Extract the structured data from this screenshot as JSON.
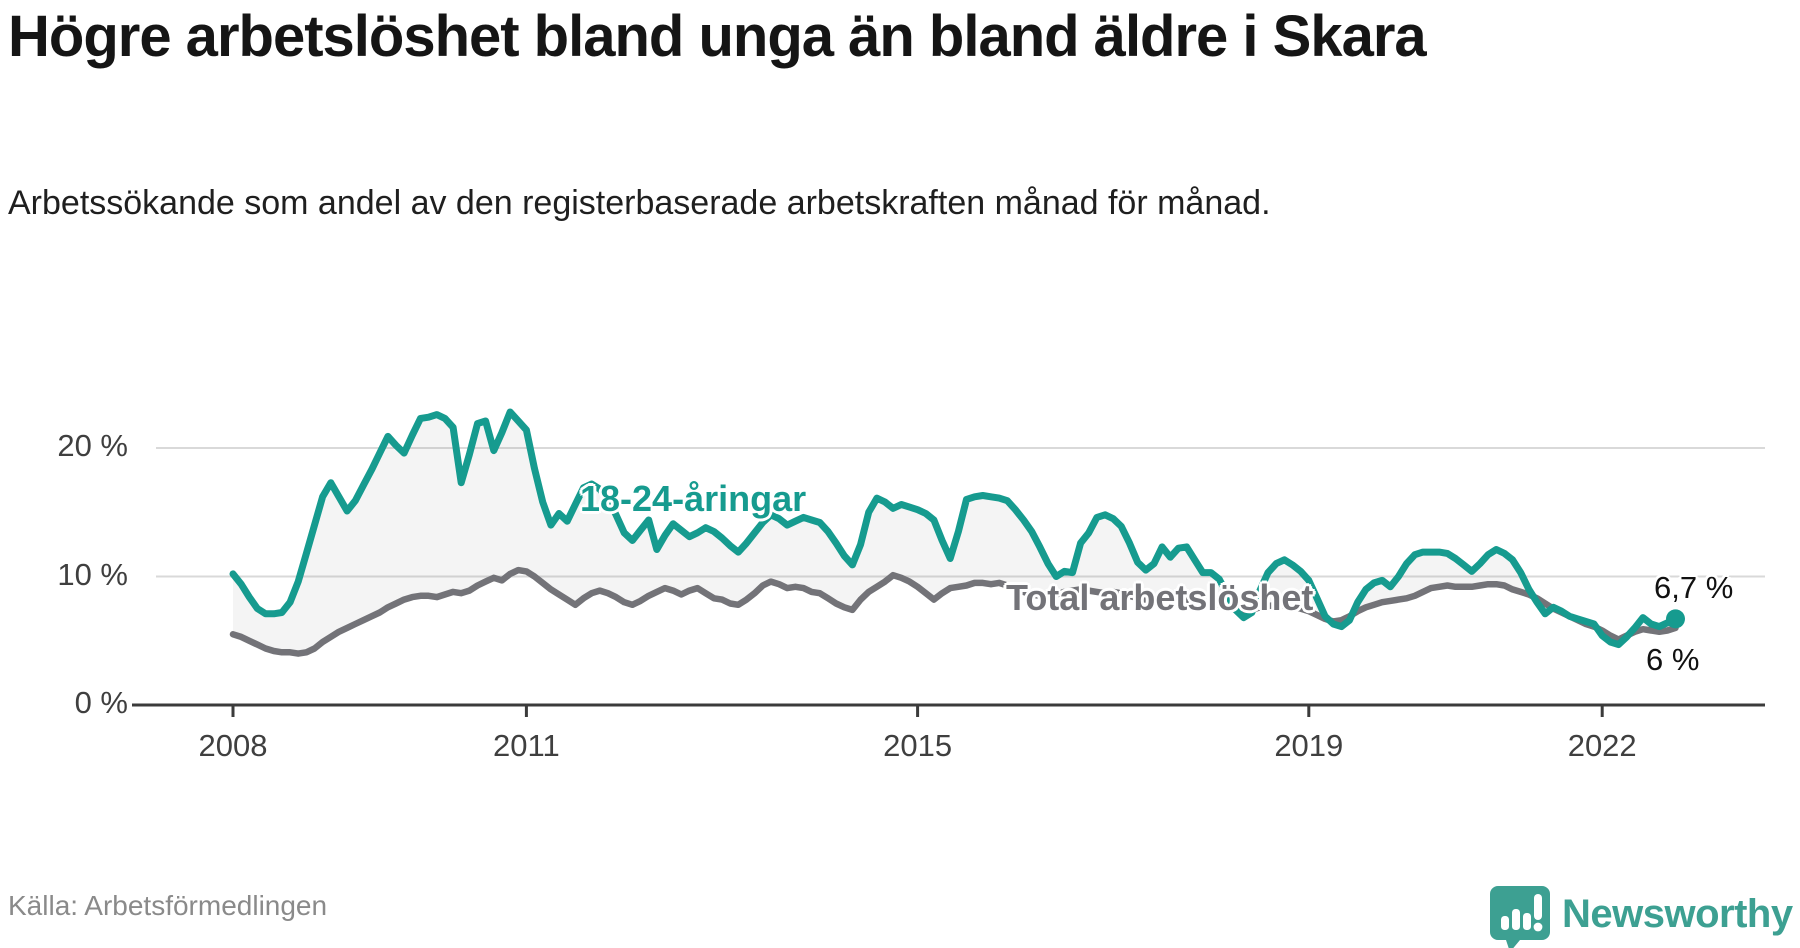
{
  "title": "Högre arbetslöshet bland unga än bland äldre i Skara",
  "subtitle": "Arbetssökande som andel av den registerbaserade arbetskraften månad för månad.",
  "source": "Källa: Arbetsförmedlingen",
  "brand": {
    "name": "Newsworthy",
    "icon": "newsworthy-logo",
    "color": "#3da092"
  },
  "chart_data": {
    "type": "line",
    "title": "Högre arbetslöshet bland unga än bland äldre i Skara",
    "xlabel": "",
    "ylabel": "Arbetssökande som andel av den registerbaserade arbetskraften",
    "x_unit": "month",
    "x_start": "2008-01",
    "x_end": "2022-10",
    "ylim": [
      0,
      24
    ],
    "grid": "horizontal",
    "legend_position": "inline-labels",
    "fill_between_series": "#f1f1f1",
    "axis_color": "#3b3b3b",
    "grid_color": "#d9d9d9",
    "x_ticks": [
      {
        "label": "2008",
        "month": 0
      },
      {
        "label": "2011",
        "month": 36
      },
      {
        "label": "2015",
        "month": 84
      },
      {
        "label": "2019",
        "month": 132
      },
      {
        "label": "2022",
        "month": 168
      }
    ],
    "y_ticks": [
      {
        "label": "0 %",
        "value": 0
      },
      {
        "label": "10 %",
        "value": 10
      },
      {
        "label": "20 %",
        "value": 20
      }
    ],
    "series": [
      {
        "name": "18-24-åringar",
        "color": "#169b8f",
        "end_value": 6.7,
        "end_label": "6,7 %",
        "values": [
          10.2,
          9.4,
          8.4,
          7.5,
          7.1,
          7.1,
          7.2,
          8.0,
          9.6,
          11.8,
          14.0,
          16.2,
          17.3,
          16.2,
          15.1,
          15.9,
          17.1,
          18.3,
          19.6,
          20.9,
          20.2,
          19.6,
          21.0,
          22.3,
          22.4,
          22.6,
          22.3,
          21.6,
          17.3,
          19.5,
          21.9,
          22.1,
          19.8,
          21.2,
          22.8,
          22.1,
          21.4,
          18.4,
          15.8,
          14.0,
          14.9,
          14.3,
          15.6,
          16.9,
          17.2,
          16.8,
          16.0,
          14.8,
          13.4,
          12.8,
          13.6,
          14.4,
          12.1,
          13.2,
          14.1,
          13.6,
          13.1,
          13.4,
          13.8,
          13.5,
          13.0,
          12.4,
          11.9,
          12.6,
          13.4,
          14.2,
          14.8,
          14.5,
          14.0,
          14.3,
          14.6,
          14.4,
          14.2,
          13.5,
          12.6,
          11.6,
          10.9,
          12.5,
          15.0,
          16.1,
          15.8,
          15.3,
          15.6,
          15.4,
          15.2,
          14.9,
          14.4,
          12.8,
          11.4,
          13.5,
          16.0,
          16.2,
          16.3,
          16.2,
          16.1,
          15.9,
          15.2,
          14.4,
          13.5,
          12.3,
          11.0,
          10.0,
          10.4,
          10.3,
          12.6,
          13.4,
          14.6,
          14.8,
          14.5,
          13.9,
          12.6,
          11.1,
          10.5,
          11.0,
          12.3,
          11.5,
          12.2,
          12.3,
          11.3,
          10.3,
          10.3,
          9.8,
          8.6,
          7.4,
          6.8,
          7.2,
          8.9,
          10.3,
          11.0,
          11.3,
          10.9,
          10.4,
          9.7,
          8.3,
          6.9,
          6.3,
          6.1,
          6.6,
          8.0,
          9.0,
          9.5,
          9.7,
          9.2,
          10.0,
          11.0,
          11.7,
          11.9,
          11.9,
          11.9,
          11.8,
          11.4,
          10.9,
          10.4,
          11.0,
          11.7,
          12.1,
          11.8,
          11.3,
          10.3,
          9.0,
          8.0,
          7.1,
          7.6,
          7.3,
          6.9,
          6.7,
          6.5,
          6.3,
          5.4,
          4.9,
          4.7,
          5.3,
          6.0,
          6.8,
          6.3,
          6.1,
          6.4,
          6.7
        ]
      },
      {
        "name": "Total arbetslöshet",
        "color": "#737378",
        "end_value": 6.0,
        "end_label": "6 %",
        "values": [
          5.5,
          5.3,
          5.0,
          4.7,
          4.4,
          4.2,
          4.1,
          4.1,
          4.0,
          4.1,
          4.4,
          4.9,
          5.3,
          5.7,
          6.0,
          6.3,
          6.6,
          6.9,
          7.2,
          7.6,
          7.9,
          8.2,
          8.4,
          8.5,
          8.5,
          8.4,
          8.6,
          8.8,
          8.7,
          8.9,
          9.3,
          9.6,
          9.9,
          9.7,
          10.2,
          10.5,
          10.4,
          10.0,
          9.5,
          9.0,
          8.6,
          8.2,
          7.8,
          8.3,
          8.7,
          8.9,
          8.7,
          8.4,
          8.0,
          7.8,
          8.1,
          8.5,
          8.8,
          9.1,
          8.9,
          8.6,
          8.9,
          9.1,
          8.7,
          8.3,
          8.2,
          7.9,
          7.8,
          8.2,
          8.7,
          9.3,
          9.6,
          9.4,
          9.1,
          9.2,
          9.1,
          8.8,
          8.7,
          8.3,
          7.9,
          7.6,
          7.4,
          8.2,
          8.8,
          9.2,
          9.6,
          10.1,
          9.9,
          9.6,
          9.2,
          8.7,
          8.2,
          8.7,
          9.1,
          9.2,
          9.3,
          9.5,
          9.5,
          9.4,
          9.5,
          9.3,
          9.1,
          8.8,
          8.6,
          8.5,
          8.4,
          8.6,
          8.8,
          8.9,
          9.0,
          8.9,
          8.8,
          8.7,
          8.8,
          8.7,
          8.5,
          8.3,
          8.2,
          8.3,
          8.5,
          8.4,
          8.3,
          8.2,
          8.1,
          8.0,
          7.9,
          7.8,
          7.6,
          7.4,
          7.3,
          7.4,
          7.6,
          7.7,
          7.8,
          7.7,
          7.6,
          7.5,
          7.3,
          7.0,
          6.7,
          6.5,
          6.6,
          6.9,
          7.3,
          7.6,
          7.8,
          8.0,
          8.1,
          8.2,
          8.3,
          8.5,
          8.8,
          9.1,
          9.2,
          9.3,
          9.2,
          9.2,
          9.2,
          9.3,
          9.4,
          9.4,
          9.3,
          9.0,
          8.8,
          8.6,
          8.3,
          7.9,
          7.5,
          7.2,
          6.9,
          6.6,
          6.3,
          6.1,
          5.8,
          5.4,
          5.1,
          5.4,
          5.7,
          5.9,
          5.8,
          5.7,
          5.8,
          6.0
        ]
      }
    ]
  }
}
